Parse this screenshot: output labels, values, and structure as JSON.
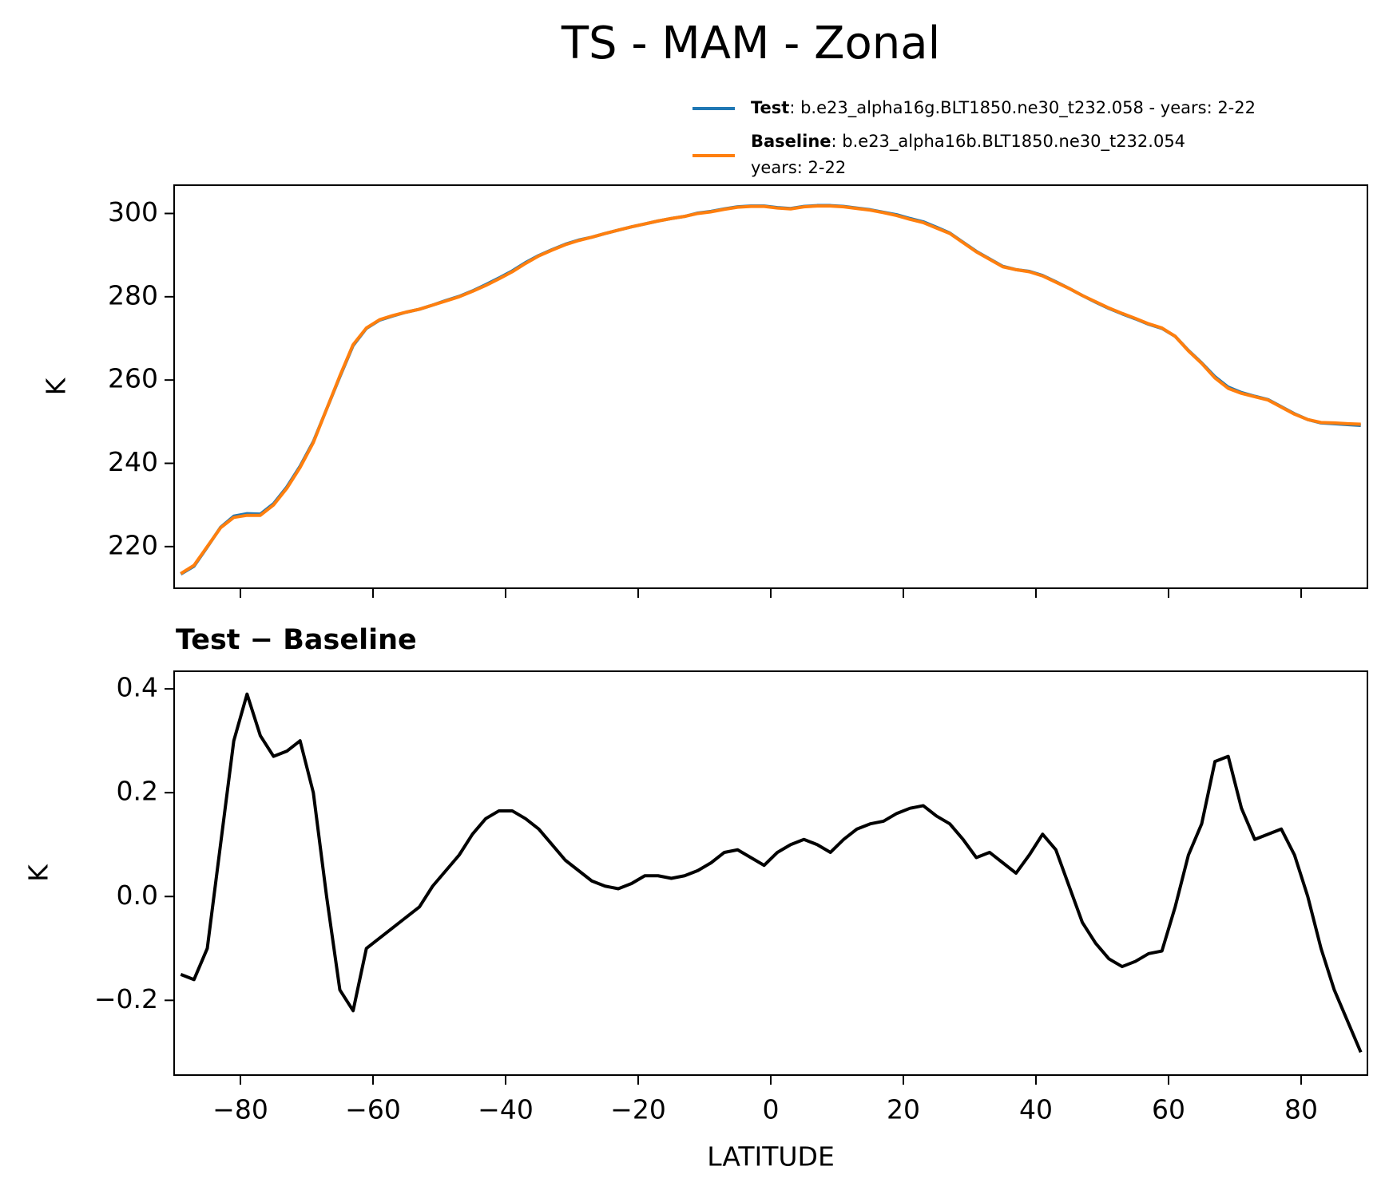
{
  "chart_data": [
    {
      "type": "line",
      "title": "TS - MAM - Zonal",
      "ylabel": "K",
      "x": [
        -89,
        -87,
        -85,
        -83,
        -81,
        -79,
        -77,
        -75,
        -73,
        -71,
        -69,
        -67,
        -65,
        -63,
        -61,
        -59,
        -57,
        -55,
        -53,
        -51,
        -49,
        -47,
        -45,
        -43,
        -41,
        -39,
        -37,
        -35,
        -33,
        -31,
        -29,
        -27,
        -25,
        -23,
        -21,
        -19,
        -17,
        -15,
        -13,
        -11,
        -9,
        -7,
        -5,
        -3,
        -1,
        1,
        3,
        5,
        7,
        9,
        11,
        13,
        15,
        17,
        19,
        21,
        23,
        25,
        27,
        29,
        31,
        33,
        35,
        37,
        39,
        41,
        43,
        45,
        47,
        49,
        51,
        53,
        55,
        57,
        59,
        61,
        63,
        65,
        67,
        69,
        71,
        73,
        75,
        77,
        79,
        81,
        83,
        85,
        87,
        89
      ],
      "series": [
        {
          "name": "Test",
          "legend_text": [
            ": b.e23_alpha16g.BLT1850.ne30_t232.058 - years: 2-22"
          ],
          "color": "#1f77b4",
          "values": [
            213.4,
            215.3,
            219.9,
            224.6,
            227.3,
            227.9,
            227.8,
            230.3,
            234.3,
            239.3,
            245.2,
            253.0,
            260.8,
            268.3,
            272.4,
            274.4,
            275.4,
            276.3,
            277.0,
            278.0,
            279.1,
            280.1,
            281.4,
            282.9,
            284.5,
            286.2,
            288.2,
            289.9,
            291.3,
            292.6,
            293.6,
            294.3,
            295.2,
            296.0,
            296.8,
            297.5,
            298.2,
            298.8,
            299.3,
            300.1,
            300.5,
            301.1,
            301.6,
            301.8,
            301.8,
            301.4,
            301.2,
            301.7,
            301.9,
            301.9,
            301.7,
            301.3,
            300.9,
            300.3,
            299.7,
            298.8,
            298.0,
            296.7,
            295.3,
            293.1,
            290.9,
            289.1,
            287.3,
            286.5,
            286.1,
            285.1,
            283.6,
            282.0,
            280.3,
            278.7,
            277.2,
            275.9,
            274.7,
            273.4,
            272.4,
            270.5,
            267.1,
            264.1,
            260.8,
            258.3,
            257.0,
            256.1,
            255.3,
            253.6,
            251.9,
            250.5,
            249.7,
            249.5,
            249.3,
            249.1
          ]
        },
        {
          "name": "Baseline",
          "legend_text": [
            ": b.e23_alpha16b.BLT1850.ne30_t232.054",
            "years: 2-22"
          ],
          "color": "#ff7f0e",
          "values": [
            213.5,
            215.5,
            220.0,
            224.5,
            227.0,
            227.5,
            227.5,
            230.0,
            234.0,
            239.0,
            245.0,
            253.0,
            261.0,
            268.5,
            272.5,
            274.5,
            275.5,
            276.3,
            277.0,
            278.0,
            279.0,
            280.0,
            281.3,
            282.7,
            284.3,
            286.0,
            288.0,
            289.8,
            291.2,
            292.5,
            293.5,
            294.3,
            295.2,
            296.0,
            296.8,
            297.5,
            298.2,
            298.8,
            299.3,
            300.0,
            300.4,
            301.0,
            301.5,
            301.7,
            301.7,
            301.3,
            301.1,
            301.6,
            301.8,
            301.8,
            301.6,
            301.2,
            300.8,
            300.2,
            299.5,
            298.6,
            297.8,
            296.5,
            295.2,
            293.0,
            290.8,
            289.0,
            287.2,
            286.5,
            286.0,
            285.0,
            283.5,
            282.0,
            280.3,
            278.8,
            277.3,
            276.0,
            274.8,
            273.5,
            272.5,
            270.5,
            267.0,
            264.0,
            260.5,
            258.0,
            256.8,
            256.0,
            255.2,
            253.5,
            251.8,
            250.5,
            249.8,
            249.7,
            249.5,
            249.4
          ]
        }
      ],
      "xlim": [
        -90,
        90
      ],
      "xticks": [
        {
          "value": -80,
          "label": "−80"
        },
        {
          "value": -60,
          "label": "−60"
        },
        {
          "value": -40,
          "label": "−40"
        },
        {
          "value": -20,
          "label": "−20"
        },
        0,
        20,
        40,
        60,
        80
      ],
      "show_xtick_labels": false,
      "ylim": [
        210,
        306.8
      ],
      "yticks": [
        220,
        240,
        260,
        280,
        300
      ]
    },
    {
      "type": "line",
      "title": "Test − Baseline",
      "ylabel": "K",
      "xlabel": "LATITUDE",
      "color": "#000000",
      "x": [
        -89,
        -87,
        -85,
        -83,
        -81,
        -79,
        -77,
        -75,
        -73,
        -71,
        -69,
        -67,
        -65,
        -63,
        -61,
        -59,
        -57,
        -55,
        -53,
        -51,
        -49,
        -47,
        -45,
        -43,
        -41,
        -39,
        -37,
        -35,
        -33,
        -31,
        -29,
        -27,
        -25,
        -23,
        -21,
        -19,
        -17,
        -15,
        -13,
        -11,
        -9,
        -7,
        -5,
        -3,
        -1,
        1,
        3,
        5,
        7,
        9,
        11,
        13,
        15,
        17,
        19,
        21,
        23,
        25,
        27,
        29,
        31,
        33,
        35,
        37,
        39,
        41,
        43,
        45,
        47,
        49,
        51,
        53,
        55,
        57,
        59,
        61,
        63,
        65,
        67,
        69,
        71,
        73,
        75,
        77,
        79,
        81,
        83,
        85,
        87,
        89
      ],
      "values": [
        -0.15,
        -0.16,
        -0.1,
        0.1,
        0.3,
        0.39,
        0.31,
        0.27,
        0.28,
        0.3,
        0.2,
        0.0,
        -0.18,
        -0.22,
        -0.1,
        -0.08,
        -0.06,
        -0.04,
        -0.02,
        0.02,
        0.05,
        0.08,
        0.12,
        0.15,
        0.165,
        0.165,
        0.15,
        0.13,
        0.1,
        0.07,
        0.05,
        0.03,
        0.02,
        0.015,
        0.025,
        0.04,
        0.04,
        0.035,
        0.04,
        0.05,
        0.065,
        0.085,
        0.09,
        0.075,
        0.06,
        0.085,
        0.1,
        0.11,
        0.1,
        0.085,
        0.11,
        0.13,
        0.14,
        0.145,
        0.16,
        0.17,
        0.175,
        0.155,
        0.14,
        0.11,
        0.075,
        0.085,
        0.065,
        0.045,
        0.08,
        0.12,
        0.09,
        0.02,
        -0.05,
        -0.09,
        -0.12,
        -0.135,
        -0.125,
        -0.11,
        -0.105,
        -0.02,
        0.08,
        0.14,
        0.26,
        0.27,
        0.17,
        0.11,
        0.12,
        0.13,
        0.08,
        0.0,
        -0.1,
        -0.18,
        -0.24,
        -0.3
      ],
      "xlim": [
        -90,
        90
      ],
      "xticks": [
        {
          "value": -80,
          "label": "−80"
        },
        {
          "value": -60,
          "label": "−60"
        },
        {
          "value": -40,
          "label": "−40"
        },
        {
          "value": -20,
          "label": "−20"
        },
        0,
        20,
        40,
        60,
        80
      ],
      "show_xtick_labels": true,
      "ylim": [
        -0.344,
        0.434
      ],
      "yticks": [
        {
          "value": -0.2,
          "label": "−0.2"
        },
        {
          "value": 0,
          "label": "0.0"
        },
        0.2,
        0.4
      ]
    }
  ]
}
